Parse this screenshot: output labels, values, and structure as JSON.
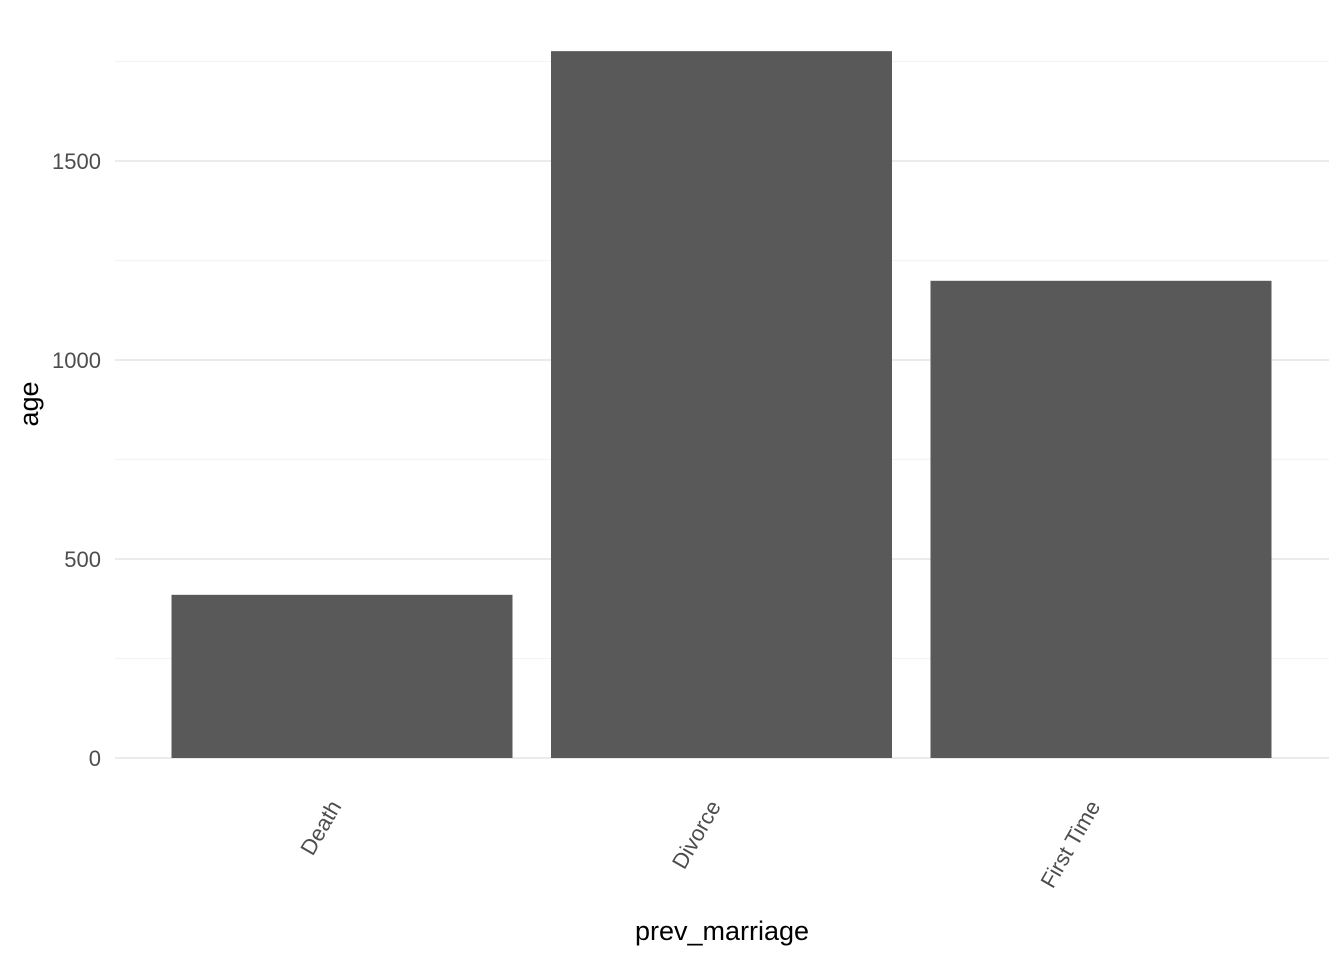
{
  "chart_data": {
    "type": "bar",
    "categories": [
      "Death",
      "Divorce",
      "First Time"
    ],
    "values": [
      410,
      1776,
      1199
    ],
    "xlabel": "prev_marriage",
    "ylabel": "age",
    "ylim": [
      0,
      1776
    ],
    "yticks": [
      0,
      500,
      1000,
      1500
    ],
    "y_minor_ticks": [
      250,
      750,
      1250,
      1750
    ],
    "x_tick_label_rotation_deg": -60,
    "grid": true,
    "legend": "none",
    "colors": {
      "bar": "#595959",
      "grid_major": "#ebebeb",
      "grid_minor": "#f4f4f4",
      "tick_text": "#4d4d4d",
      "title_text": "#000000",
      "background": "#ffffff"
    }
  }
}
